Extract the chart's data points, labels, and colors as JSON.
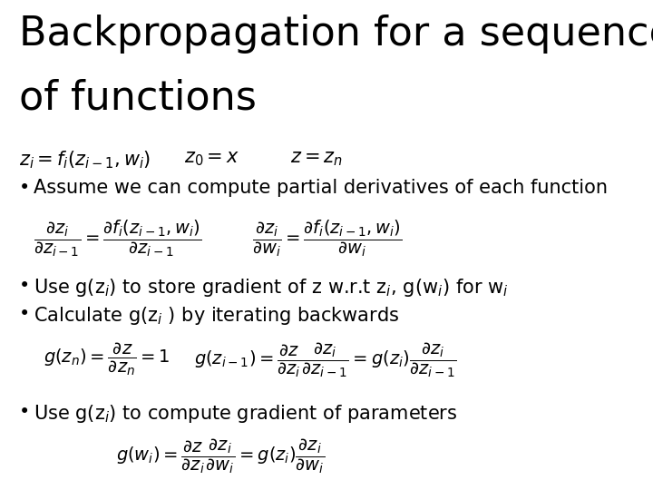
{
  "title_line1": "Backpropagation for a sequence",
  "title_line2": "of functions",
  "title_fontsize": 32,
  "title_font": "DejaVu Sans",
  "background_color": "#ffffff",
  "text_color": "#000000",
  "math_fontsize": 14,
  "bullet_fontsize": 15,
  "eq_top_left": "$z_i = f_i(z_{i-1}, w_i)$",
  "eq_top_mid": "$z_0 = x$",
  "eq_top_right": "$z = z_n$",
  "bullet1": "Assume we can compute partial derivatives of each function",
  "eq_partial_left": "$\\dfrac{\\partial z_i}{\\partial z_{i-1}} = \\dfrac{\\partial f_i(z_{i-1}, w_i)}{\\partial z_{i-1}}$",
  "eq_partial_right": "$\\dfrac{\\partial z_i}{\\partial w_i} = \\dfrac{\\partial f_i(z_{i-1}, w_i)}{\\partial w_i}$",
  "bullet2": "Use g(z$_i$) to store gradient of z w.r.t z$_i$, g(w$_i$) for w$_i$",
  "bullet3": "Calculate g(z$_i$ ) by iterating backwards",
  "eq_iter_left": "$g(z_n) = \\dfrac{\\partial z}{\\partial z_n} = 1$",
  "eq_iter_right": "$g(z_{i-1}) = \\dfrac{\\partial z}{\\partial z_i}\\dfrac{\\partial z_i}{\\partial z_{i-1}} = g(z_i)\\dfrac{\\partial z_i}{\\partial z_{i-1}}$",
  "bullet4": "Use g(z$_i$) to compute gradient of parameters",
  "eq_param": "$g(w_i) = \\dfrac{\\partial z}{\\partial z_i}\\dfrac{\\partial z_i}{\\partial w_i} = g(z_i)\\dfrac{\\partial z_i}{\\partial w_i}$"
}
